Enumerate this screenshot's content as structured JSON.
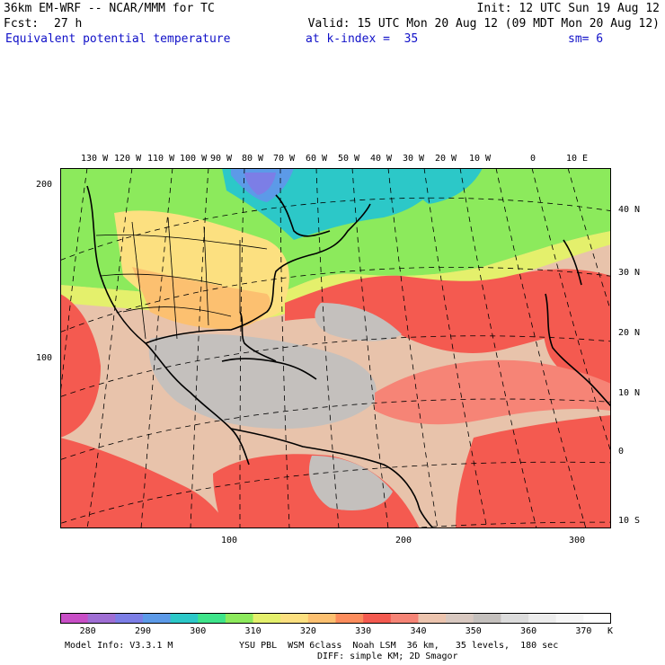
{
  "header": {
    "model": "36km EM-WRF -- NCAR/MMM for TC",
    "init": "Init: 12 UTC Sun 19 Aug 12",
    "fcst_label": "Fcst:",
    "fcst_value": "27 h",
    "valid": "Valid: 15 UTC Mon 20 Aug 12 (09 MDT Mon 20 Aug 12)",
    "field": "Equivalent potential temperature",
    "level": "at k-index =  35",
    "smoothing": "sm= 6"
  },
  "map": {
    "lon_labels": [
      "130 W",
      "120 W",
      "110 W",
      "100 W",
      "90 W",
      "80 W",
      "70 W",
      "60 W",
      "50 W",
      "40 W",
      "30 W",
      "20 W",
      "10 W",
      "0",
      "10 E"
    ],
    "lat_labels": [
      "40 N",
      "30 N",
      "20 N",
      "10 N",
      "0",
      "10 S"
    ],
    "y_grid_labels": [
      "200",
      "100"
    ],
    "x_grid_labels": [
      "100",
      "200",
      "300"
    ],
    "colors": {
      "ocean_tropical": "#e8c3ab",
      "continent_gray": "#c4c0bd",
      "warm_red": "#f25e52"
    }
  },
  "colorbar": {
    "labels": [
      "280",
      "290",
      "300",
      "310",
      "320",
      "330",
      "340",
      "350",
      "360",
      "370"
    ],
    "unit": "K",
    "colors": [
      "#c84ec6",
      "#9f6ed4",
      "#7c7ee6",
      "#5c9ae8",
      "#2cc8c8",
      "#3ee48a",
      "#8cea5c",
      "#e4f06c",
      "#fce080",
      "#fcc070",
      "#fc8c5c",
      "#f45a50",
      "#f68476",
      "#ecc4ae",
      "#d8c8c0",
      "#c4c0bd",
      "#dcdcdc",
      "#ececec",
      "#f6f6f6",
      "#ffffff"
    ]
  },
  "footer": {
    "model_info": "Model Info: V3.3.1 M",
    "physics": "YSU PBL  WSM 6class  Noah LSM  36 km,   35 levels,  180 sec",
    "diff": "DIFF: simple KM; 2D Smagor"
  }
}
